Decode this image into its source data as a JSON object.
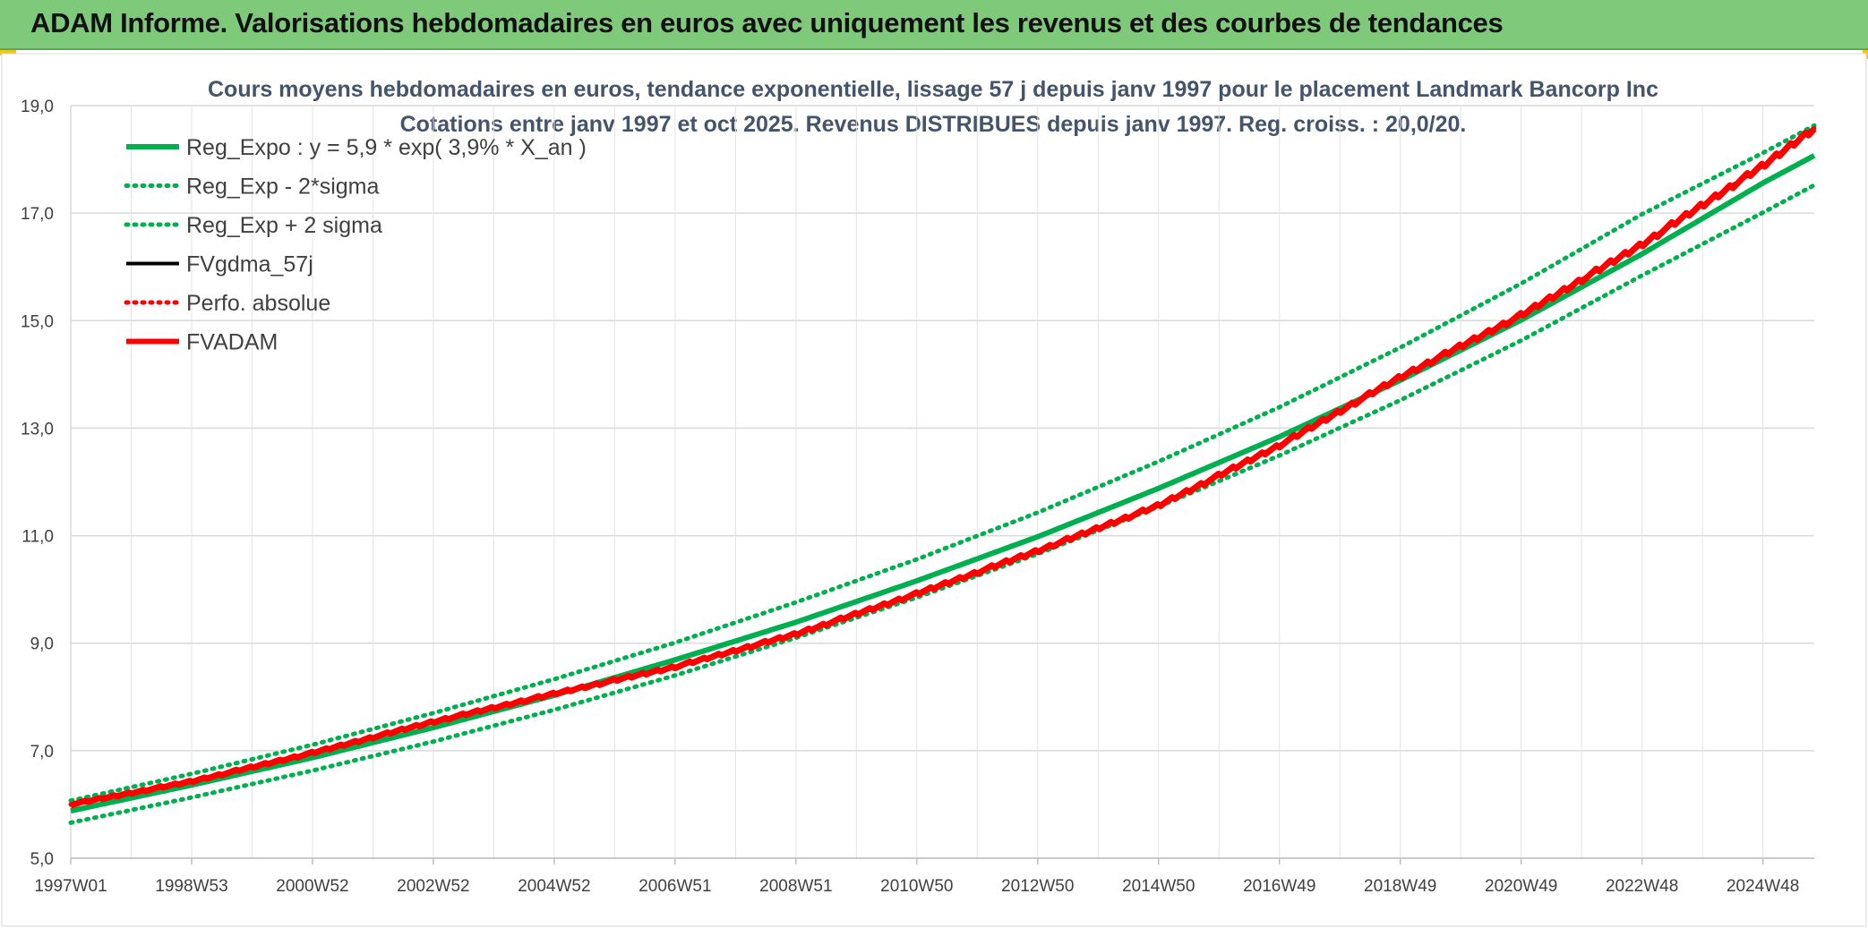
{
  "header": {
    "title": "ADAM Informe. Valorisations hebdomadaires en euros avec uniquement les revenus et des courbes de tendances"
  },
  "chart_data": {
    "type": "line",
    "title_line1": "Cours moyens hebdomadaires en euros, tendance exponentielle, lissage 57 j depuis janv 1997 pour le placement Landmark Bancorp Inc",
    "title_line2": "Cotations entre janv 1997 et oct 2025. Revenus DISTRIBUES depuis janv 1997. Reg. croiss. : 20,0/20.",
    "xlabel": "",
    "ylabel": "",
    "ylim": [
      5.0,
      19.0
    ],
    "x_range": [
      1997.0,
      2025.85
    ],
    "y_ticks": [
      "5,0",
      "7,0",
      "9,0",
      "11,0",
      "13,0",
      "15,0",
      "17,0",
      "19,0"
    ],
    "y_tick_values": [
      5,
      7,
      9,
      11,
      13,
      15,
      17,
      19
    ],
    "x_ticks": [
      "1997W01",
      "1998W53",
      "2000W52",
      "2002W52",
      "2004W52",
      "2006W51",
      "2008W51",
      "2010W50",
      "2012W50",
      "2014W50",
      "2016W49",
      "2018W49",
      "2020W49",
      "2022W48",
      "2024W48"
    ],
    "x_tick_years": [
      1997.0,
      1999.0,
      2001.0,
      2003.0,
      2005.0,
      2007.0,
      2009.0,
      2011.0,
      2013.0,
      2015.0,
      2017.0,
      2019.0,
      2021.0,
      2023.0,
      2025.0
    ],
    "grid": true,
    "legend_position": "top-left",
    "series": [
      {
        "name": "Reg_Expo : y = 5,9 * exp( 3,9% *  X_an )",
        "style": "solid-thick",
        "color": "#00b050",
        "x": [
          1997,
          1999,
          2001,
          2003,
          2005,
          2007,
          2009,
          2011,
          2013,
          2015,
          2017,
          2019,
          2021,
          2023,
          2025,
          2025.85
        ],
        "values": [
          5.88,
          6.36,
          6.87,
          7.43,
          8.03,
          8.69,
          9.39,
          10.16,
          10.98,
          11.88,
          12.84,
          13.89,
          15.01,
          16.24,
          17.56,
          18.07
        ]
      },
      {
        "name": "Reg_Exp - 2*sigma",
        "style": "dotted",
        "color": "#00b050",
        "x": [
          1997,
          1999,
          2001,
          2003,
          2005,
          2007,
          2009,
          2011,
          2013,
          2015,
          2017,
          2019,
          2021,
          2023,
          2025,
          2025.85
        ],
        "values": [
          5.66,
          6.13,
          6.63,
          7.17,
          7.76,
          8.4,
          9.1,
          9.85,
          10.66,
          11.54,
          12.49,
          13.52,
          14.63,
          15.84,
          17.01,
          17.52
        ]
      },
      {
        "name": "Reg_Exp + 2 sigma",
        "style": "dotted",
        "color": "#00b050",
        "x": [
          1997,
          1999,
          2001,
          2003,
          2005,
          2007,
          2009,
          2011,
          2013,
          2015,
          2017,
          2019,
          2021,
          2023,
          2025,
          2025.85
        ],
        "values": [
          6.07,
          6.57,
          7.11,
          7.7,
          8.33,
          9.01,
          9.76,
          10.56,
          11.43,
          12.38,
          13.39,
          14.5,
          15.69,
          16.98,
          18.12,
          18.63
        ]
      },
      {
        "name": "FVgdma_57j",
        "style": "solid",
        "color": "#000000",
        "x": [
          1997,
          1999,
          2001,
          2003,
          2005,
          2007,
          2009,
          2011,
          2013,
          2015,
          2017,
          2019,
          2021,
          2023,
          2025,
          2025.85
        ],
        "values": [
          6.0,
          6.43,
          6.96,
          7.54,
          8.06,
          8.56,
          9.17,
          9.92,
          10.72,
          11.56,
          12.68,
          13.95,
          15.1,
          16.42,
          17.88,
          18.58
        ]
      },
      {
        "name": "Perfo. absolue",
        "style": "dotted",
        "color": "#ff0000",
        "x": [
          1997,
          1999,
          2001,
          2003,
          2005,
          2007,
          2009,
          2011,
          2013,
          2015,
          2017,
          2019,
          2021,
          2023,
          2025,
          2025.85
        ],
        "values": [
          6.0,
          6.43,
          6.96,
          7.54,
          8.06,
          8.56,
          9.17,
          9.92,
          10.72,
          11.56,
          12.68,
          13.95,
          15.1,
          16.42,
          17.88,
          18.58
        ]
      },
      {
        "name": "FVADAM",
        "style": "solid-thick-stepped",
        "color": "#ff0000",
        "x": [
          1997,
          1999,
          2001,
          2003,
          2005,
          2007,
          2009,
          2011,
          2013,
          2015,
          2017,
          2019,
          2021,
          2023,
          2025,
          2025.85
        ],
        "values": [
          6.0,
          6.43,
          6.96,
          7.54,
          8.06,
          8.56,
          9.17,
          9.92,
          10.72,
          11.56,
          12.68,
          13.95,
          15.1,
          16.42,
          17.88,
          18.58
        ]
      }
    ]
  }
}
